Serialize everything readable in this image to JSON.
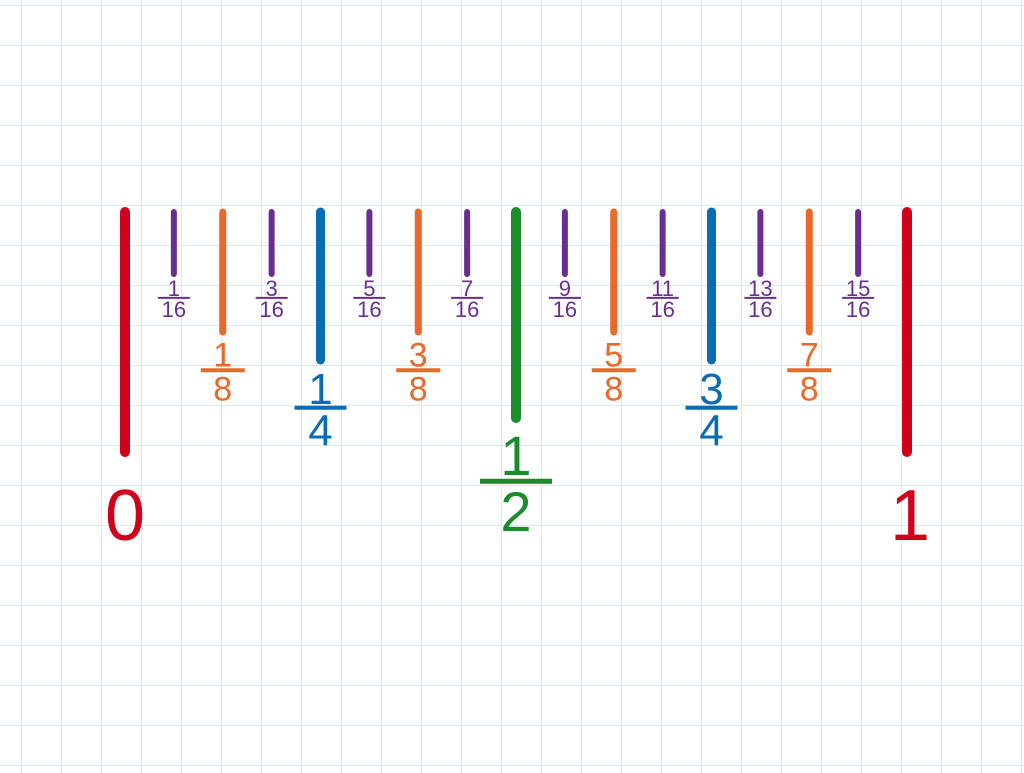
{
  "title": "",
  "colors": {
    "whole": "#d0021b",
    "halves": "#1a8c2a",
    "quarters": "#0a6db3",
    "eighths": "#e8692a",
    "sixteenths": "#6a2d91",
    "grid": "#d8eeee"
  },
  "ruler": {
    "range": [
      0,
      1
    ],
    "marks": [
      {
        "value": 0,
        "kind": "whole",
        "numerator": "",
        "denominator": "",
        "label": "0"
      },
      {
        "value": 0.0625,
        "kind": "sixteenths",
        "numerator": "1",
        "denominator": "16",
        "label": ""
      },
      {
        "value": 0.125,
        "kind": "eighths",
        "numerator": "1",
        "denominator": "8",
        "label": ""
      },
      {
        "value": 0.1875,
        "kind": "sixteenths",
        "numerator": "3",
        "denominator": "16",
        "label": ""
      },
      {
        "value": 0.25,
        "kind": "quarters",
        "numerator": "1",
        "denominator": "4",
        "label": ""
      },
      {
        "value": 0.3125,
        "kind": "sixteenths",
        "numerator": "5",
        "denominator": "16",
        "label": ""
      },
      {
        "value": 0.375,
        "kind": "eighths",
        "numerator": "3",
        "denominator": "8",
        "label": ""
      },
      {
        "value": 0.4375,
        "kind": "sixteenths",
        "numerator": "7",
        "denominator": "16",
        "label": ""
      },
      {
        "value": 0.5,
        "kind": "halves",
        "numerator": "1",
        "denominator": "2",
        "label": ""
      },
      {
        "value": 0.5625,
        "kind": "sixteenths",
        "numerator": "9",
        "denominator": "16",
        "label": ""
      },
      {
        "value": 0.625,
        "kind": "eighths",
        "numerator": "5",
        "denominator": "8",
        "label": ""
      },
      {
        "value": 0.6875,
        "kind": "sixteenths",
        "numerator": "11",
        "denominator": "16",
        "label": ""
      },
      {
        "value": 0.75,
        "kind": "quarters",
        "numerator": "3",
        "denominator": "4",
        "label": ""
      },
      {
        "value": 0.8125,
        "kind": "sixteenths",
        "numerator": "13",
        "denominator": "16",
        "label": ""
      },
      {
        "value": 0.875,
        "kind": "eighths",
        "numerator": "7",
        "denominator": "8",
        "label": ""
      },
      {
        "value": 0.9375,
        "kind": "sixteenths",
        "numerator": "15",
        "denominator": "16",
        "label": ""
      },
      {
        "value": 1,
        "kind": "whole",
        "numerator": "",
        "denominator": "",
        "label": "1"
      }
    ]
  }
}
